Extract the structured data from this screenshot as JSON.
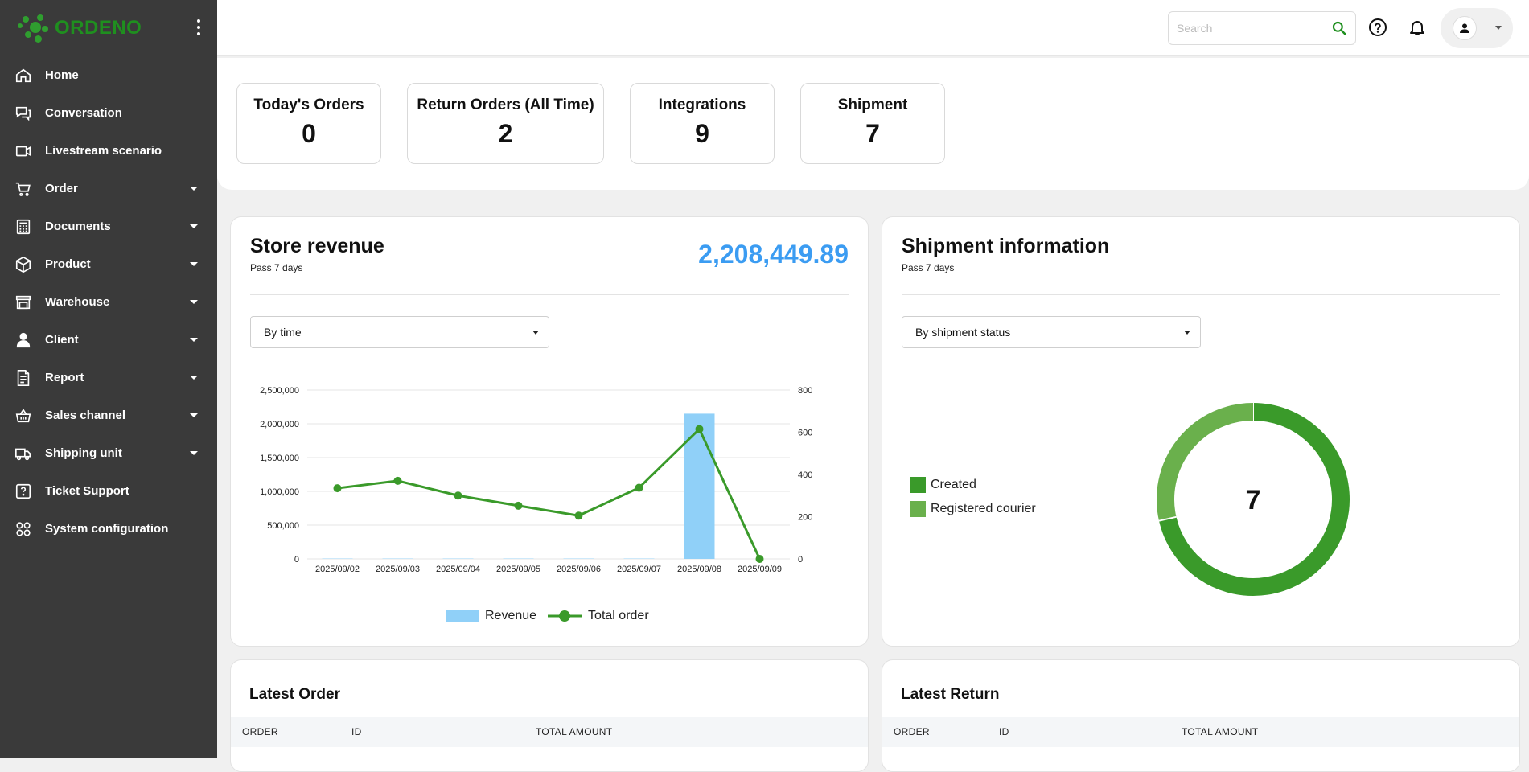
{
  "brand": {
    "name": "ORDENO",
    "color": "#1f8f1f"
  },
  "sidebar": {
    "items": [
      {
        "label": "Home",
        "icon": "home-icon",
        "has_caret": false
      },
      {
        "label": "Conversation",
        "icon": "chat-icon",
        "has_caret": false
      },
      {
        "label": "Livestream scenario",
        "icon": "video-icon",
        "has_caret": false
      },
      {
        "label": "Order",
        "icon": "cart-icon",
        "has_caret": true
      },
      {
        "label": "Documents",
        "icon": "calculator-icon",
        "has_caret": true
      },
      {
        "label": "Product",
        "icon": "box-icon",
        "has_caret": true
      },
      {
        "label": "Warehouse",
        "icon": "warehouse-icon",
        "has_caret": true
      },
      {
        "label": "Client",
        "icon": "person-icon",
        "has_caret": true
      },
      {
        "label": "Report",
        "icon": "report-icon",
        "has_caret": true
      },
      {
        "label": "Sales channel",
        "icon": "basket-icon",
        "has_caret": true
      },
      {
        "label": "Shipping unit",
        "icon": "truck-icon",
        "has_caret": true
      },
      {
        "label": "Ticket Support",
        "icon": "question-icon",
        "has_caret": false
      },
      {
        "label": "System configuration",
        "icon": "grid-icon",
        "has_caret": false
      }
    ]
  },
  "header": {
    "search_placeholder": "Search",
    "accent": "#1f8f1f"
  },
  "stats": [
    {
      "title": "Today's Orders",
      "value": "0"
    },
    {
      "title": "Return Orders (All Time)",
      "value": "2"
    },
    {
      "title": "Integrations",
      "value": "9"
    },
    {
      "title": "Shipment",
      "value": "7"
    }
  ],
  "revenue_panel": {
    "title": "Store revenue",
    "subtitle": "Pass 7 days",
    "total": "2,208,449.89",
    "filter": "By time",
    "legend_revenue": "Revenue",
    "legend_orders": "Total order"
  },
  "shipment_panel": {
    "title": "Shipment information",
    "subtitle": "Pass 7 days",
    "filter": "By shipment status",
    "center_value": "7"
  },
  "latest_order": {
    "title": "Latest Order",
    "columns": [
      "ORDER",
      "ID",
      "TOTAL AMOUNT"
    ]
  },
  "latest_return": {
    "title": "Latest Return",
    "columns": [
      "ORDER",
      "ID",
      "TOTAL AMOUNT"
    ]
  },
  "chart_data": [
    {
      "type": "bar",
      "categories": [
        "2025/09/02",
        "2025/09/03",
        "2025/09/04",
        "2025/09/05",
        "2025/09/06",
        "2025/09/07",
        "2025/09/08",
        "2025/09/09"
      ],
      "series": [
        {
          "name": "Revenue",
          "type": "bar",
          "axis": "left",
          "color": "#90d0f8",
          "values": [
            5000,
            5000,
            5000,
            5000,
            5000,
            5000,
            2150000,
            0
          ]
        },
        {
          "name": "Total order",
          "type": "line",
          "axis": "right",
          "color": "#3a9a2a",
          "values": [
            335,
            370,
            300,
            252,
            205,
            337,
            615,
            0
          ]
        }
      ],
      "ylim": [
        0,
        2500000
      ],
      "yticks": [
        "0",
        "500,000",
        "1,000,000",
        "1,500,000",
        "2,000,000",
        "2,500,000"
      ],
      "y2lim": [
        0,
        800
      ],
      "y2ticks": [
        "0",
        "200",
        "400",
        "600",
        "800"
      ],
      "grid": true,
      "legend": "bottom"
    },
    {
      "type": "pie",
      "donut": true,
      "categories": [
        "Created",
        "Registered courier"
      ],
      "values": [
        5,
        2
      ],
      "colors": [
        "#3a9a2a",
        "#6ab04c"
      ],
      "center_label": "7",
      "legend": "left"
    }
  ]
}
